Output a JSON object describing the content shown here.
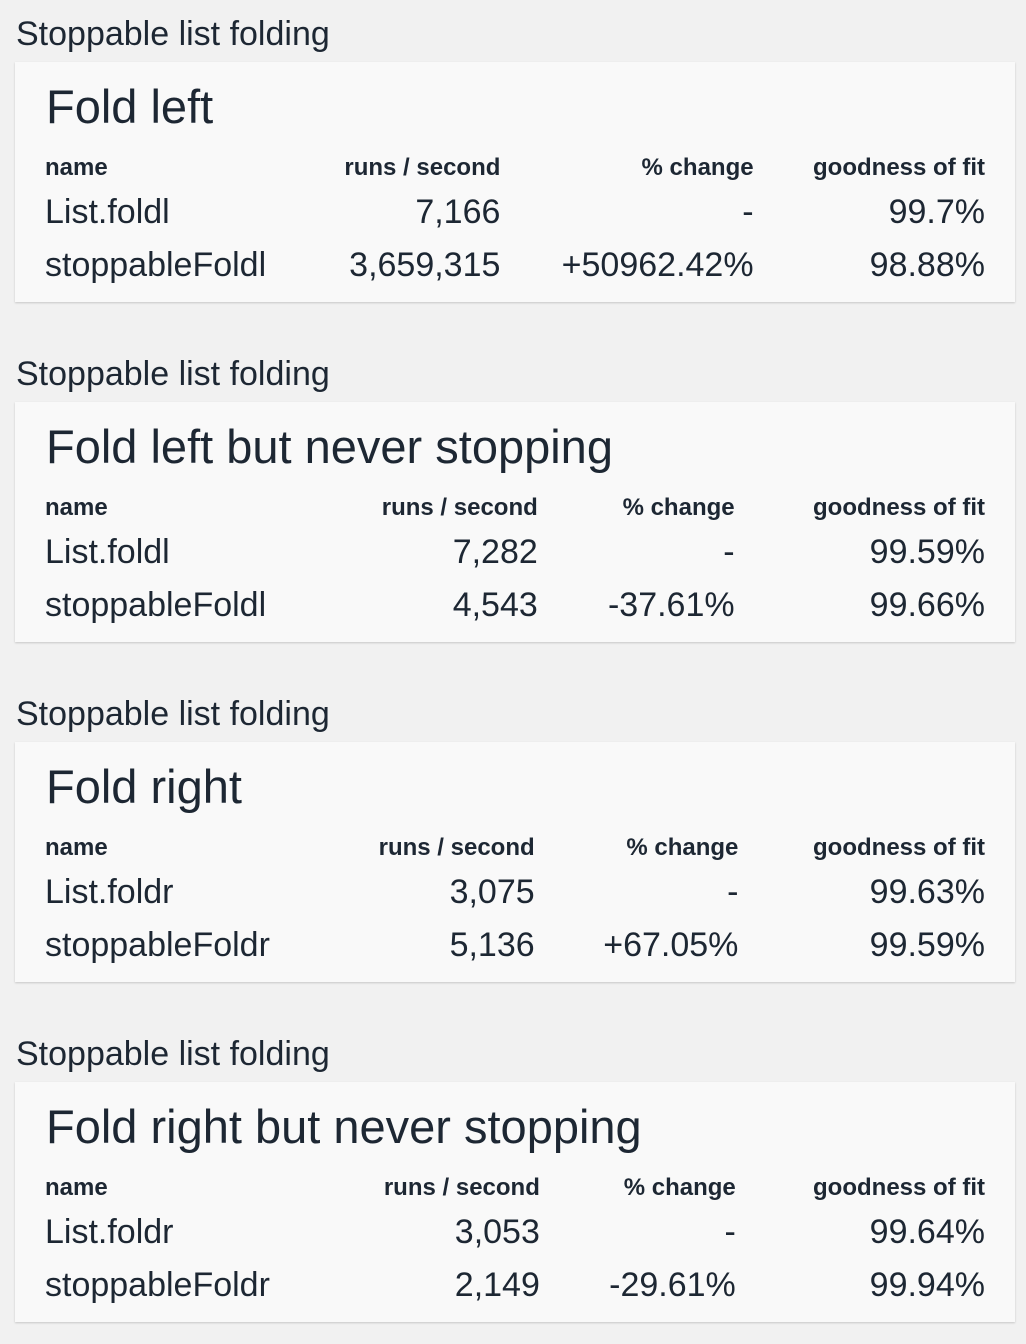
{
  "groups": [
    {
      "label": "Stoppable list folding",
      "title": "Fold left",
      "headers": [
        "name",
        "runs / second",
        "% change",
        "goodness of fit"
      ],
      "rows": [
        [
          "List.foldl",
          "7,166",
          "-",
          "99.7%"
        ],
        [
          "stoppableFoldl",
          "3,659,315",
          "+50962.42%",
          "98.88%"
        ]
      ]
    },
    {
      "label": "Stoppable list folding",
      "title": "Fold left but never stopping",
      "headers": [
        "name",
        "runs / second",
        "% change",
        "goodness of fit"
      ],
      "rows": [
        [
          "List.foldl",
          "7,282",
          "-",
          "99.59%"
        ],
        [
          "stoppableFoldl",
          "4,543",
          "-37.61%",
          "99.66%"
        ]
      ]
    },
    {
      "label": "Stoppable list folding",
      "title": "Fold right",
      "headers": [
        "name",
        "runs / second",
        "% change",
        "goodness of fit"
      ],
      "rows": [
        [
          "List.foldr",
          "3,075",
          "-",
          "99.63%"
        ],
        [
          "stoppableFoldr",
          "5,136",
          "+67.05%",
          "99.59%"
        ]
      ]
    },
    {
      "label": "Stoppable list folding",
      "title": "Fold right but never stopping",
      "headers": [
        "name",
        "runs / second",
        "% change",
        "goodness of fit"
      ],
      "rows": [
        [
          "List.foldr",
          "3,053",
          "-",
          "99.64%"
        ],
        [
          "stoppableFoldr",
          "2,149",
          "-29.61%",
          "99.94%"
        ]
      ]
    }
  ]
}
